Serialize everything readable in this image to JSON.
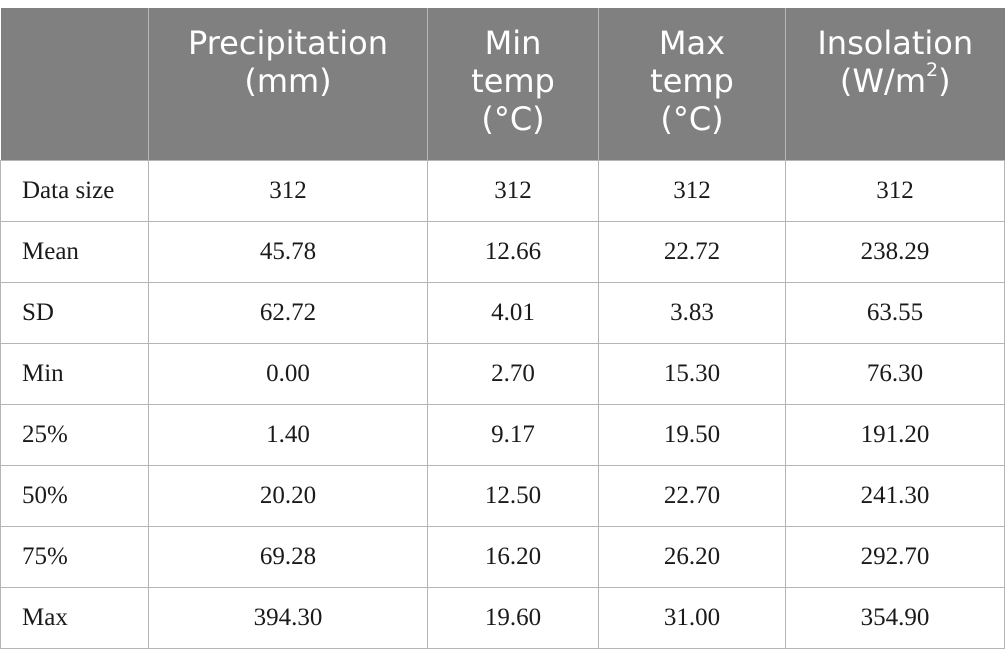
{
  "table": {
    "headers": [
      {
        "lines": [
          ""
        ]
      },
      {
        "lines": [
          "Precipitation",
          "(mm)"
        ]
      },
      {
        "lines": [
          "Min",
          "temp",
          "(°C)"
        ]
      },
      {
        "lines": [
          "Max",
          "temp",
          "(°C)"
        ]
      },
      {
        "lines": [
          "Insolation",
          "(W/m",
          ")"
        ],
        "superscript": "2"
      }
    ],
    "rows": [
      {
        "label": "Data size",
        "values": [
          "312",
          "312",
          "312",
          "312"
        ]
      },
      {
        "label": "Mean",
        "values": [
          "45.78",
          "12.66",
          "22.72",
          "238.29"
        ]
      },
      {
        "label": "SD",
        "values": [
          "62.72",
          "4.01",
          "3.83",
          "63.55"
        ]
      },
      {
        "label": "Min",
        "values": [
          "0.00",
          "2.70",
          "15.30",
          "76.30"
        ]
      },
      {
        "label": "25%",
        "values": [
          "1.40",
          "9.17",
          "19.50",
          "191.20"
        ]
      },
      {
        "label": "50%",
        "values": [
          "20.20",
          "12.50",
          "22.70",
          "241.30"
        ]
      },
      {
        "label": "75%",
        "values": [
          "69.28",
          "16.20",
          "26.20",
          "292.70"
        ]
      },
      {
        "label": "Max",
        "values": [
          "394.30",
          "19.60",
          "31.00",
          "354.90"
        ]
      }
    ]
  },
  "colors": {
    "header_bg": "#808080",
    "header_text": "#ffffff",
    "grid": "#b5b5b5",
    "body_text": "#1a1a1a"
  }
}
